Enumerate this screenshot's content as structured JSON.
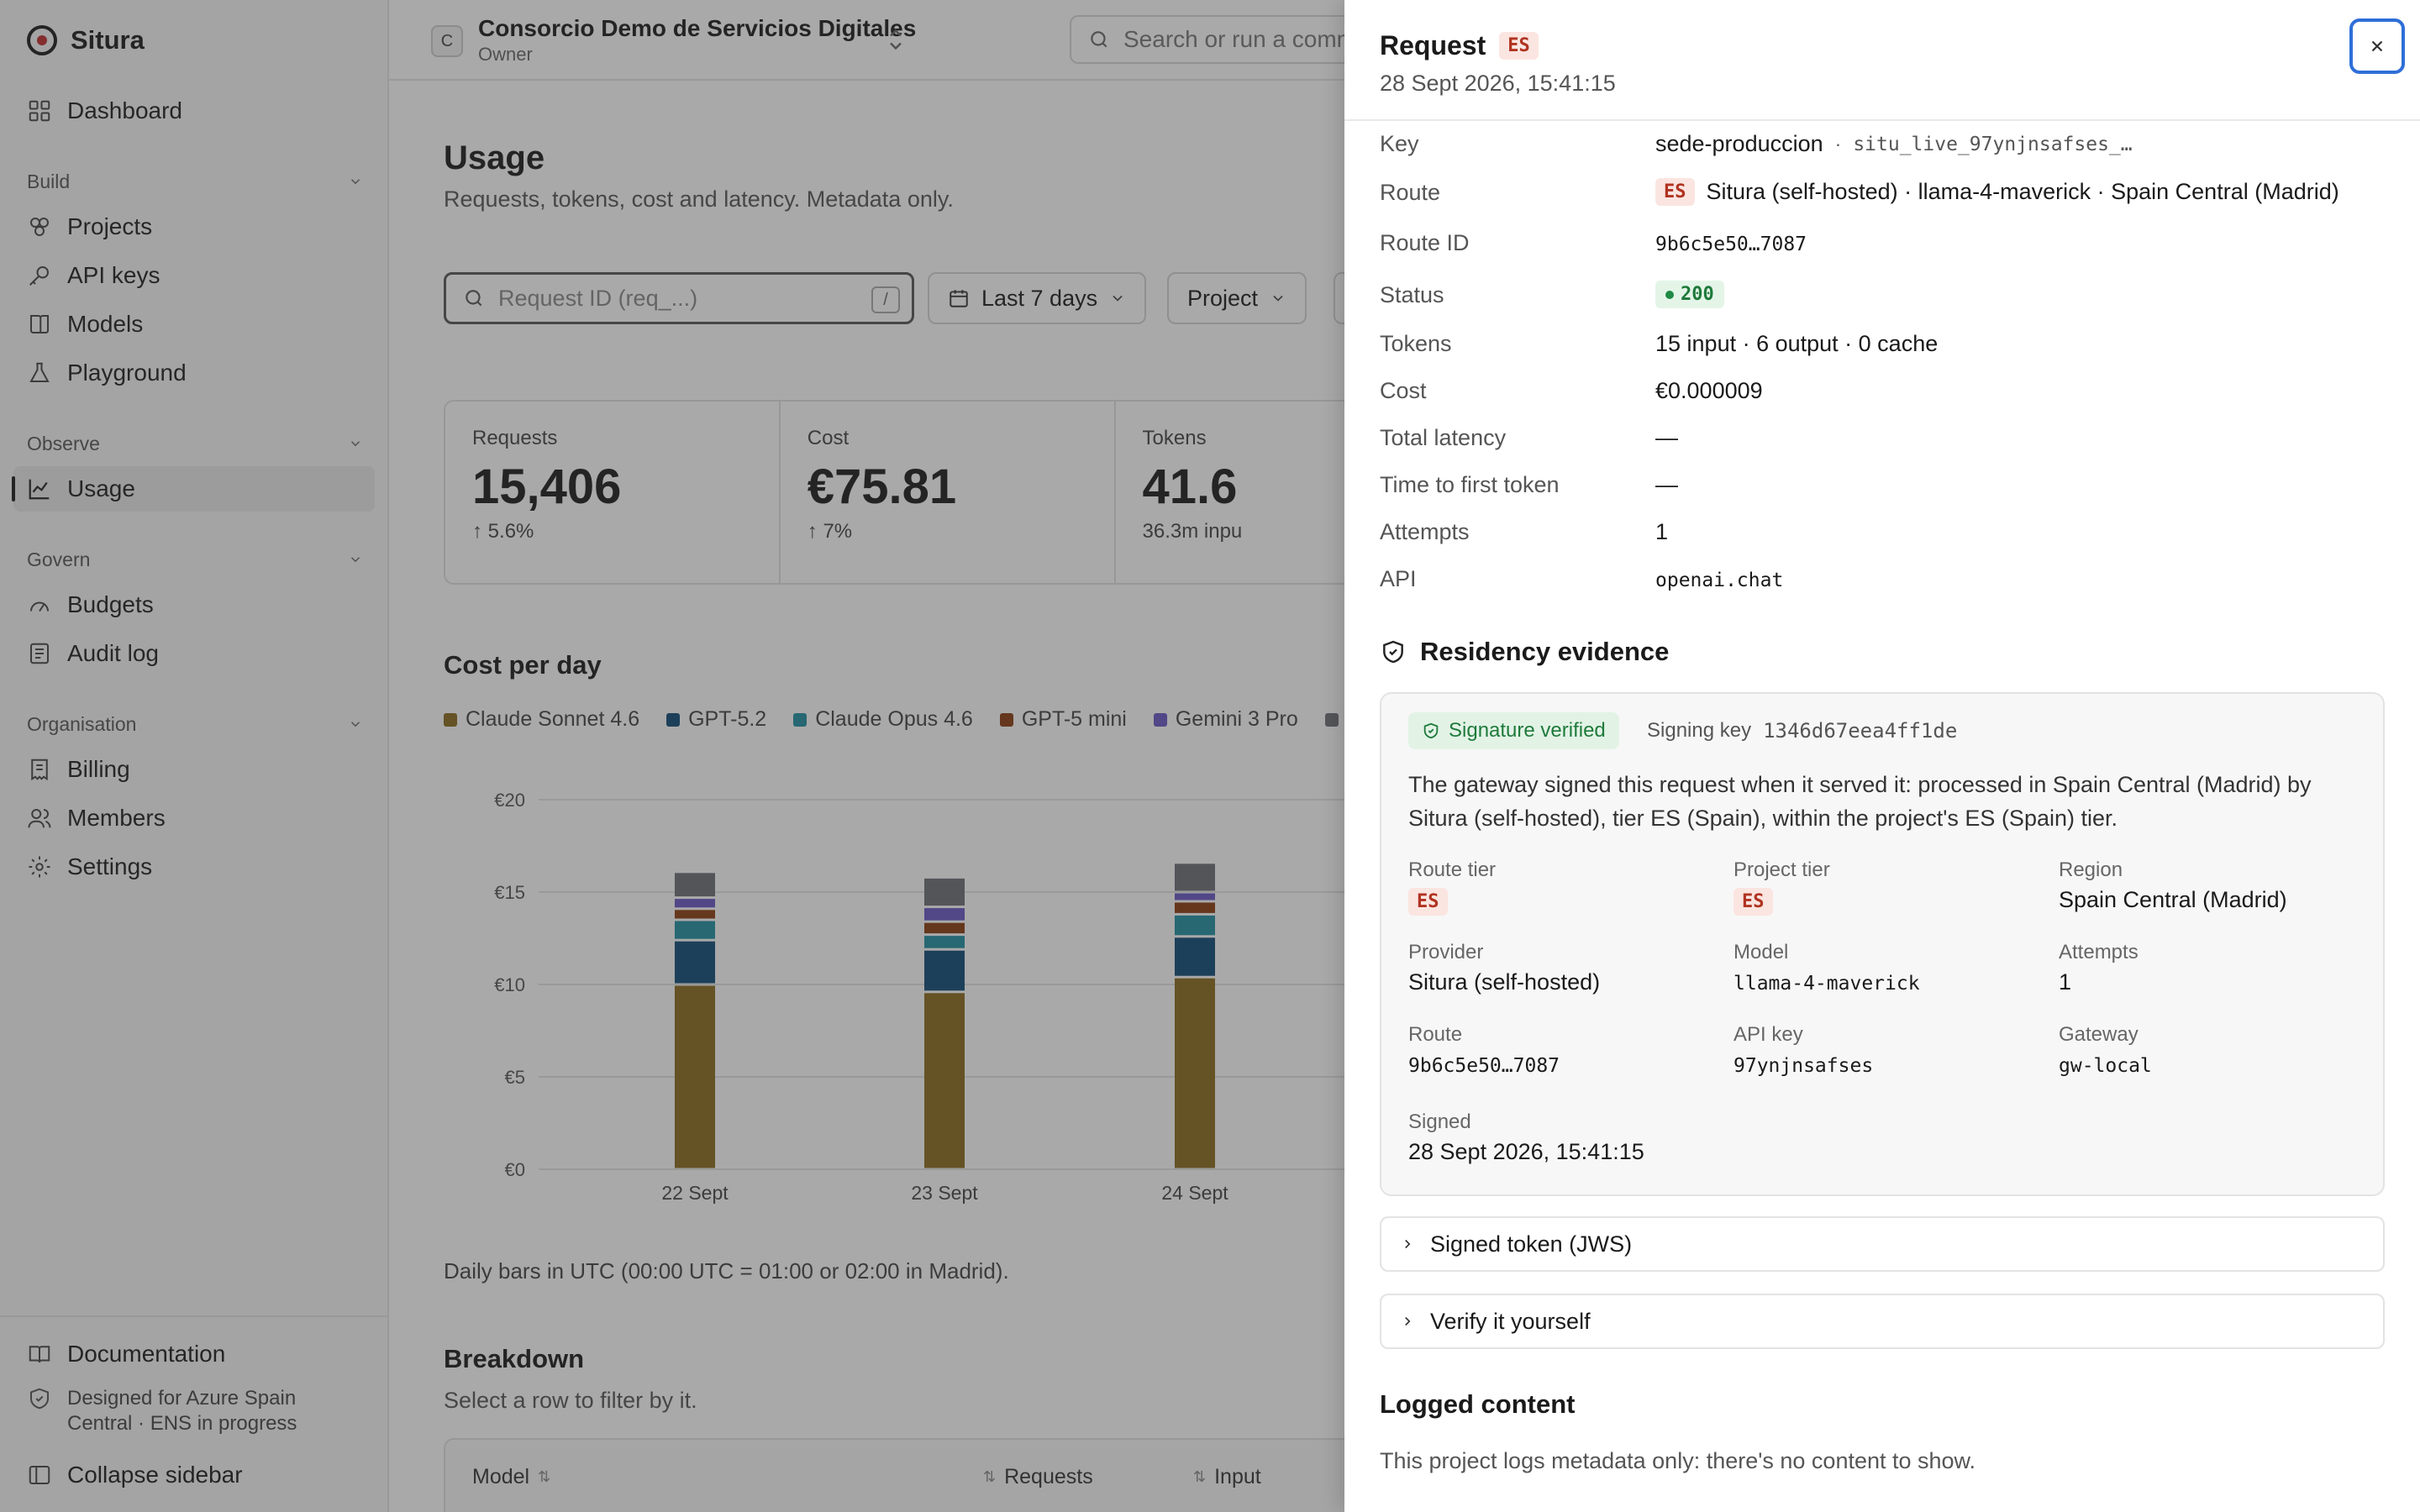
{
  "app": {
    "name": "Situra"
  },
  "sidebar": {
    "dashboard": "Dashboard",
    "build_label": "Build",
    "projects": "Projects",
    "api_keys": "API keys",
    "models": "Models",
    "playground": "Playground",
    "observe_label": "Observe",
    "usage": "Usage",
    "govern_label": "Govern",
    "budgets": "Budgets",
    "audit_log": "Audit log",
    "organisation_label": "Organisation",
    "billing": "Billing",
    "members": "Members",
    "settings": "Settings",
    "documentation": "Documentation",
    "azure_note_line1": "Designed for Azure Spain",
    "azure_note_line2": "Central · ENS in progress",
    "collapse": "Collapse sidebar"
  },
  "topbar": {
    "org_initial": "C",
    "org_name": "Consorcio Demo de Servicios Digitales",
    "org_role": "Owner",
    "search_placeholder": "Search or run a comm"
  },
  "main": {
    "title": "Usage",
    "subtitle": "Requests, tokens, cost and latency. Metadata only.",
    "request_placeholder": "Request ID (req_...)",
    "kbd_hint": "/",
    "date_filter": "Last 7 days",
    "project_filter": "Project",
    "stats": [
      {
        "label": "Requests",
        "value": "15,406",
        "delta": "5.6%"
      },
      {
        "label": "Cost",
        "value": "€75.81",
        "delta": "7%"
      },
      {
        "label": "Tokens",
        "value": "41.6",
        "delta": "36.3m inpu"
      }
    ],
    "cost_title": "Cost per day",
    "chart_note": "Daily bars in UTC (00:00 UTC = 01:00 or 02:00 in Madrid).",
    "breakdown_title": "Breakdown",
    "breakdown_sub": "Select a row to filter by it.",
    "table_headers": [
      "Model",
      "Requests",
      "Input"
    ]
  },
  "chart_data": {
    "type": "bar",
    "stacked": true,
    "categories": [
      "22 Sept",
      "23 Sept",
      "24 Sept"
    ],
    "y_ticks": [
      "€0",
      "€5",
      "€10",
      "€15",
      "€20"
    ],
    "ylim": [
      0,
      20
    ],
    "grid": true,
    "legend_position": "top-left",
    "series": [
      {
        "name": "Claude Sonnet 4.6",
        "color": "#8a6a1c",
        "values": [
          10.0,
          9.6,
          10.4
        ]
      },
      {
        "name": "GPT-5.2",
        "color": "#0f4a78",
        "values": [
          2.4,
          2.3,
          2.2
        ]
      },
      {
        "name": "Claude Opus 4.6",
        "color": "#1f8fa3",
        "values": [
          1.1,
          0.8,
          1.2
        ]
      },
      {
        "name": "GPT-5 mini",
        "color": "#8a3c0f",
        "values": [
          0.6,
          0.7,
          0.7
        ]
      },
      {
        "name": "Gemini 3 Pro",
        "color": "#6a56c4",
        "values": [
          0.6,
          0.8,
          0.5
        ]
      },
      {
        "name": "",
        "color": "#6b6e75",
        "values": [
          1.4,
          1.6,
          1.6
        ]
      }
    ]
  },
  "drawer": {
    "title": "Request",
    "title_tier": "ES",
    "timestamp": "28 Sept 2026, 15:41:15",
    "fields": {
      "key_label": "Key",
      "key_value": "sede-produccion",
      "key_sep": "·",
      "key_id": "situ_live_97ynjnsafses_…",
      "route_label": "Route",
      "route_tier": "ES",
      "route_value": "Situra (self-hosted) · llama-4-maverick · Spain Central (Madrid)",
      "route_id_label": "Route ID",
      "route_id_value": "9b6c5e50…7087",
      "status_label": "Status",
      "status_value": "200",
      "tokens_label": "Tokens",
      "tokens_value": "15 input · 6 output · 0 cache",
      "cost_label": "Cost",
      "cost_value": "€0.000009",
      "latency_label": "Total latency",
      "latency_value": "—",
      "ttft_label": "Time to first token",
      "ttft_value": "—",
      "attempts_label": "Attempts",
      "attempts_value": "1",
      "api_label": "API",
      "api_value": "openai.chat"
    },
    "residency": {
      "title": "Residency evidence",
      "verified": "Signature verified",
      "signing_label": "Signing key",
      "signing_key": "1346d67eea4ff1de",
      "text": "The gateway signed this request when it served it: processed in Spain Central (Madrid) by Situra (self-hosted), tier ES (Spain), within the project's ES (Spain) tier.",
      "route_tier_label": "Route tier",
      "route_tier_value": "ES",
      "project_tier_label": "Project tier",
      "project_tier_value": "ES",
      "region_label": "Region",
      "region_value": "Spain Central (Madrid)",
      "provider_label": "Provider",
      "provider_value": "Situra (self-hosted)",
      "model_label": "Model",
      "model_value": "llama-4-maverick",
      "attempts_label": "Attempts",
      "attempts_value": "1",
      "route_label": "Route",
      "route_value": "9b6c5e50…7087",
      "api_key_label": "API key",
      "api_key_value": "97ynjnsafses",
      "gateway_label": "Gateway",
      "gateway_value": "gw-local",
      "signed_label": "Signed",
      "signed_value": "28 Sept 2026, 15:41:15"
    },
    "accordion_jws": "Signed token (JWS)",
    "accordion_verify": "Verify it yourself",
    "logged_title": "Logged content",
    "logged_text": "This project logs metadata only: there's no content to show."
  }
}
